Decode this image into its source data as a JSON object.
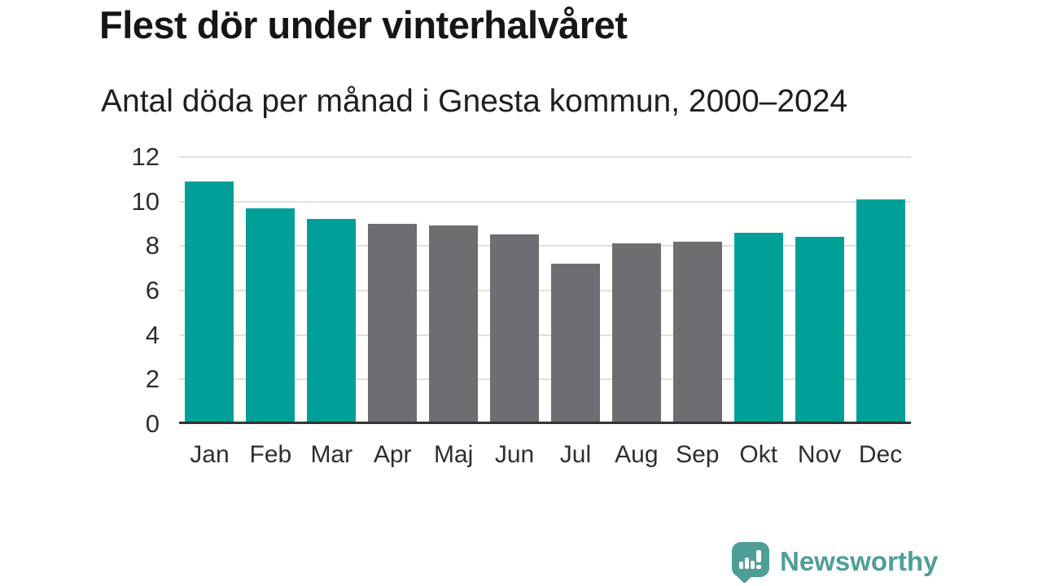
{
  "title": "Flest dör under vinterhalvåret",
  "subtitle": "Antal döda per månad i Gnesta kommun, 2000–2024",
  "chart_data": {
    "type": "bar",
    "title": "Flest dör under vinterhalvåret",
    "subtitle": "Antal döda per månad i Gnesta kommun, 2000–2024",
    "categories": [
      "Jan",
      "Feb",
      "Mar",
      "Apr",
      "Maj",
      "Jun",
      "Jul",
      "Aug",
      "Sep",
      "Okt",
      "Nov",
      "Dec"
    ],
    "values": [
      10.8,
      9.6,
      9.1,
      8.9,
      8.8,
      8.4,
      7.1,
      8.0,
      8.1,
      8.5,
      8.3,
      10.0
    ],
    "highlighted": [
      true,
      true,
      true,
      false,
      false,
      false,
      false,
      false,
      false,
      true,
      true,
      true
    ],
    "xlabel": "",
    "ylabel": "",
    "ylim": [
      0,
      12
    ],
    "yticks": [
      0,
      2,
      4,
      6,
      8,
      10,
      12
    ],
    "grid": true,
    "legend": "none",
    "colors": {
      "highlight": "#00A099",
      "default": "#6E6D72",
      "gridline": "#E0E0E0",
      "axis_line": "#333333",
      "tick_text": "#2E2E2E"
    }
  },
  "branding": {
    "logo_text": "Newsworthy",
    "logo_color": "#4E9E98"
  }
}
